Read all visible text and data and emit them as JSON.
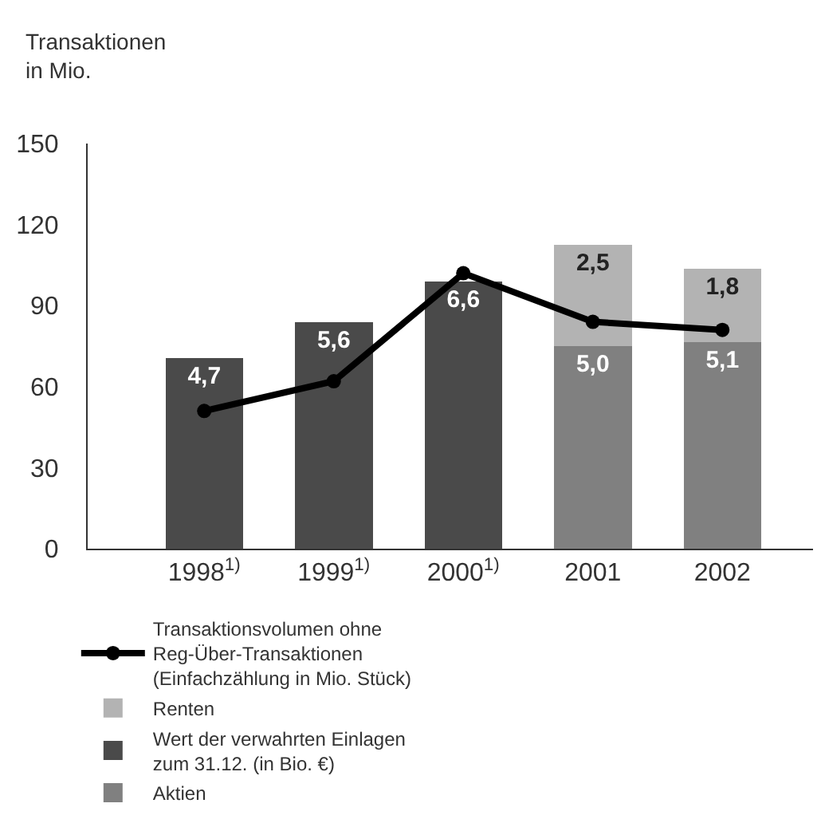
{
  "chart_data": {
    "type": "bar",
    "stacked": true,
    "ylabel": "Transaktionen\nin Mio.",
    "categories": [
      "1998$^{1)}$",
      "1999$^{1)}$",
      "2000$^{1)}$",
      "2001",
      "2002"
    ],
    "series": [
      {
        "name": "Wert der verwahrten Einlagen\nzum 31.12. (in Bio. €)",
        "color": "#4a4a4a",
        "axis": "y2",
        "values": [
          4.7,
          5.6,
          6.6,
          null,
          null
        ],
        "value_labels": [
          "4,7",
          "5,6",
          "6,6",
          null,
          null
        ]
      },
      {
        "name": "Aktien",
        "color": "#808080",
        "axis": "y2",
        "values": [
          null,
          null,
          null,
          5.0,
          5.1
        ],
        "value_labels": [
          null,
          null,
          null,
          "5,0",
          "5,1"
        ]
      },
      {
        "name": "Renten",
        "color": "#b3b3b3",
        "axis": "y2",
        "values": [
          null,
          null,
          null,
          2.5,
          1.8
        ],
        "value_labels": [
          null,
          null,
          null,
          "2,5",
          "1,8"
        ]
      },
      {
        "name": "Transaktionsvolumen ohne\nReg-Über-Transaktionen\n(Einfachzählung in Mio. Stück)",
        "type": "line",
        "color": "#000000",
        "marker": "circle",
        "values": [
          51,
          62,
          102,
          84,
          81
        ]
      }
    ],
    "ylim": [
      0,
      150
    ],
    "yticks": [
      0,
      30,
      60,
      90,
      120,
      150
    ],
    "y2lim": [
      0,
      10
    ],
    "legend": "bottom"
  }
}
